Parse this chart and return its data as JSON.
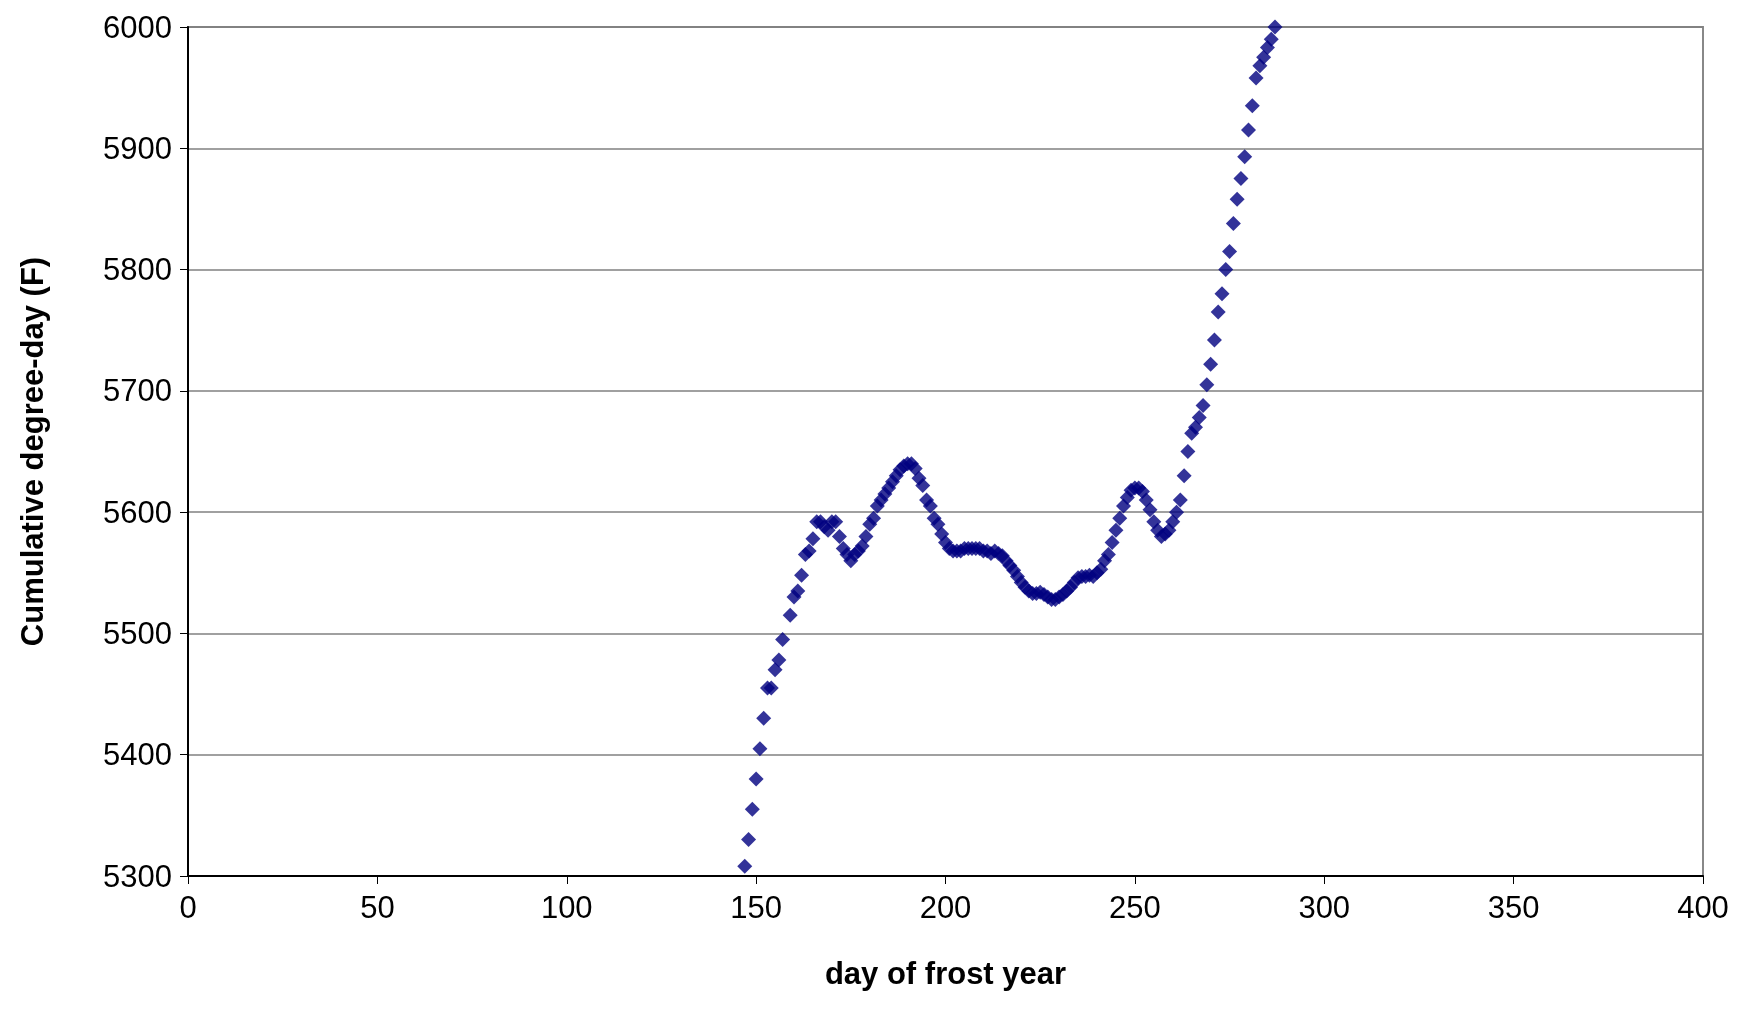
{
  "chart_data": {
    "type": "scatter",
    "xlabel": "day of frost year",
    "ylabel": "Cumulative degree-day (F)",
    "xlim": [
      0,
      400
    ],
    "xticks": [
      0,
      50,
      100,
      150,
      200,
      250,
      300,
      350,
      400
    ],
    "ylim": [
      5300,
      6000
    ],
    "yticks": [
      5300,
      5400,
      5500,
      5600,
      5700,
      5800,
      5900,
      6000
    ],
    "grid": "y",
    "marker": "diamond",
    "series": [
      {
        "color": "#000080",
        "x": [
          147,
          148,
          149,
          150,
          151,
          152,
          153,
          154,
          155,
          156,
          157,
          159,
          160,
          161,
          162,
          163,
          164,
          165,
          166,
          167,
          168,
          169,
          170,
          171,
          172,
          173,
          174,
          175,
          176,
          177,
          178,
          179,
          180,
          181,
          182,
          183,
          184,
          185,
          186,
          187,
          188,
          189,
          190,
          191,
          192,
          193,
          194,
          195,
          196,
          197,
          198,
          199,
          200,
          201,
          202,
          203,
          204,
          205,
          206,
          207,
          208,
          209,
          210,
          211,
          212,
          213,
          214,
          215,
          216,
          217,
          218,
          219,
          220,
          221,
          222,
          223,
          224,
          225,
          226,
          227,
          228,
          229,
          230,
          231,
          232,
          233,
          234,
          235,
          236,
          237,
          238,
          239,
          240,
          241,
          242,
          243,
          244,
          245,
          246,
          247,
          248,
          249,
          250,
          251,
          252,
          253,
          254,
          255,
          256,
          257,
          258,
          259,
          260,
          261,
          262,
          263,
          264,
          265,
          266,
          267,
          268,
          269,
          270,
          271,
          272,
          273,
          274,
          275,
          276,
          277,
          278,
          279,
          280,
          281,
          282,
          283,
          284,
          285,
          286,
          287
        ],
        "values": [
          5308,
          5330,
          5355,
          5380,
          5405,
          5430,
          5455,
          5455,
          5470,
          5478,
          5495,
          5515,
          5530,
          5535,
          5548,
          5565,
          5568,
          5578,
          5592,
          5592,
          5588,
          5585,
          5592,
          5592,
          5580,
          5570,
          5565,
          5560,
          5565,
          5568,
          5572,
          5580,
          5590,
          5595,
          5605,
          5610,
          5615,
          5620,
          5625,
          5630,
          5635,
          5638,
          5640,
          5640,
          5636,
          5628,
          5622,
          5610,
          5605,
          5595,
          5590,
          5582,
          5575,
          5570,
          5568,
          5568,
          5568,
          5570,
          5570,
          5570,
          5570,
          5570,
          5568,
          5568,
          5566,
          5568,
          5566,
          5564,
          5560,
          5556,
          5552,
          5547,
          5542,
          5538,
          5535,
          5533,
          5533,
          5534,
          5532,
          5530,
          5528,
          5528,
          5530,
          5532,
          5535,
          5538,
          5542,
          5546,
          5547,
          5547,
          5548,
          5547,
          5550,
          5553,
          5560,
          5565,
          5575,
          5585,
          5595,
          5605,
          5612,
          5618,
          5620,
          5620,
          5617,
          5610,
          5602,
          5592,
          5585,
          5580,
          5582,
          5585,
          5592,
          5600,
          5610,
          5630,
          5650,
          5665,
          5670,
          5678,
          5688,
          5705,
          5722,
          5742,
          5765,
          5780,
          5800,
          5815,
          5838,
          5858,
          5875,
          5893,
          5915,
          5935,
          5958,
          5968,
          5975,
          5983,
          5990,
          6000
        ]
      }
    ]
  }
}
